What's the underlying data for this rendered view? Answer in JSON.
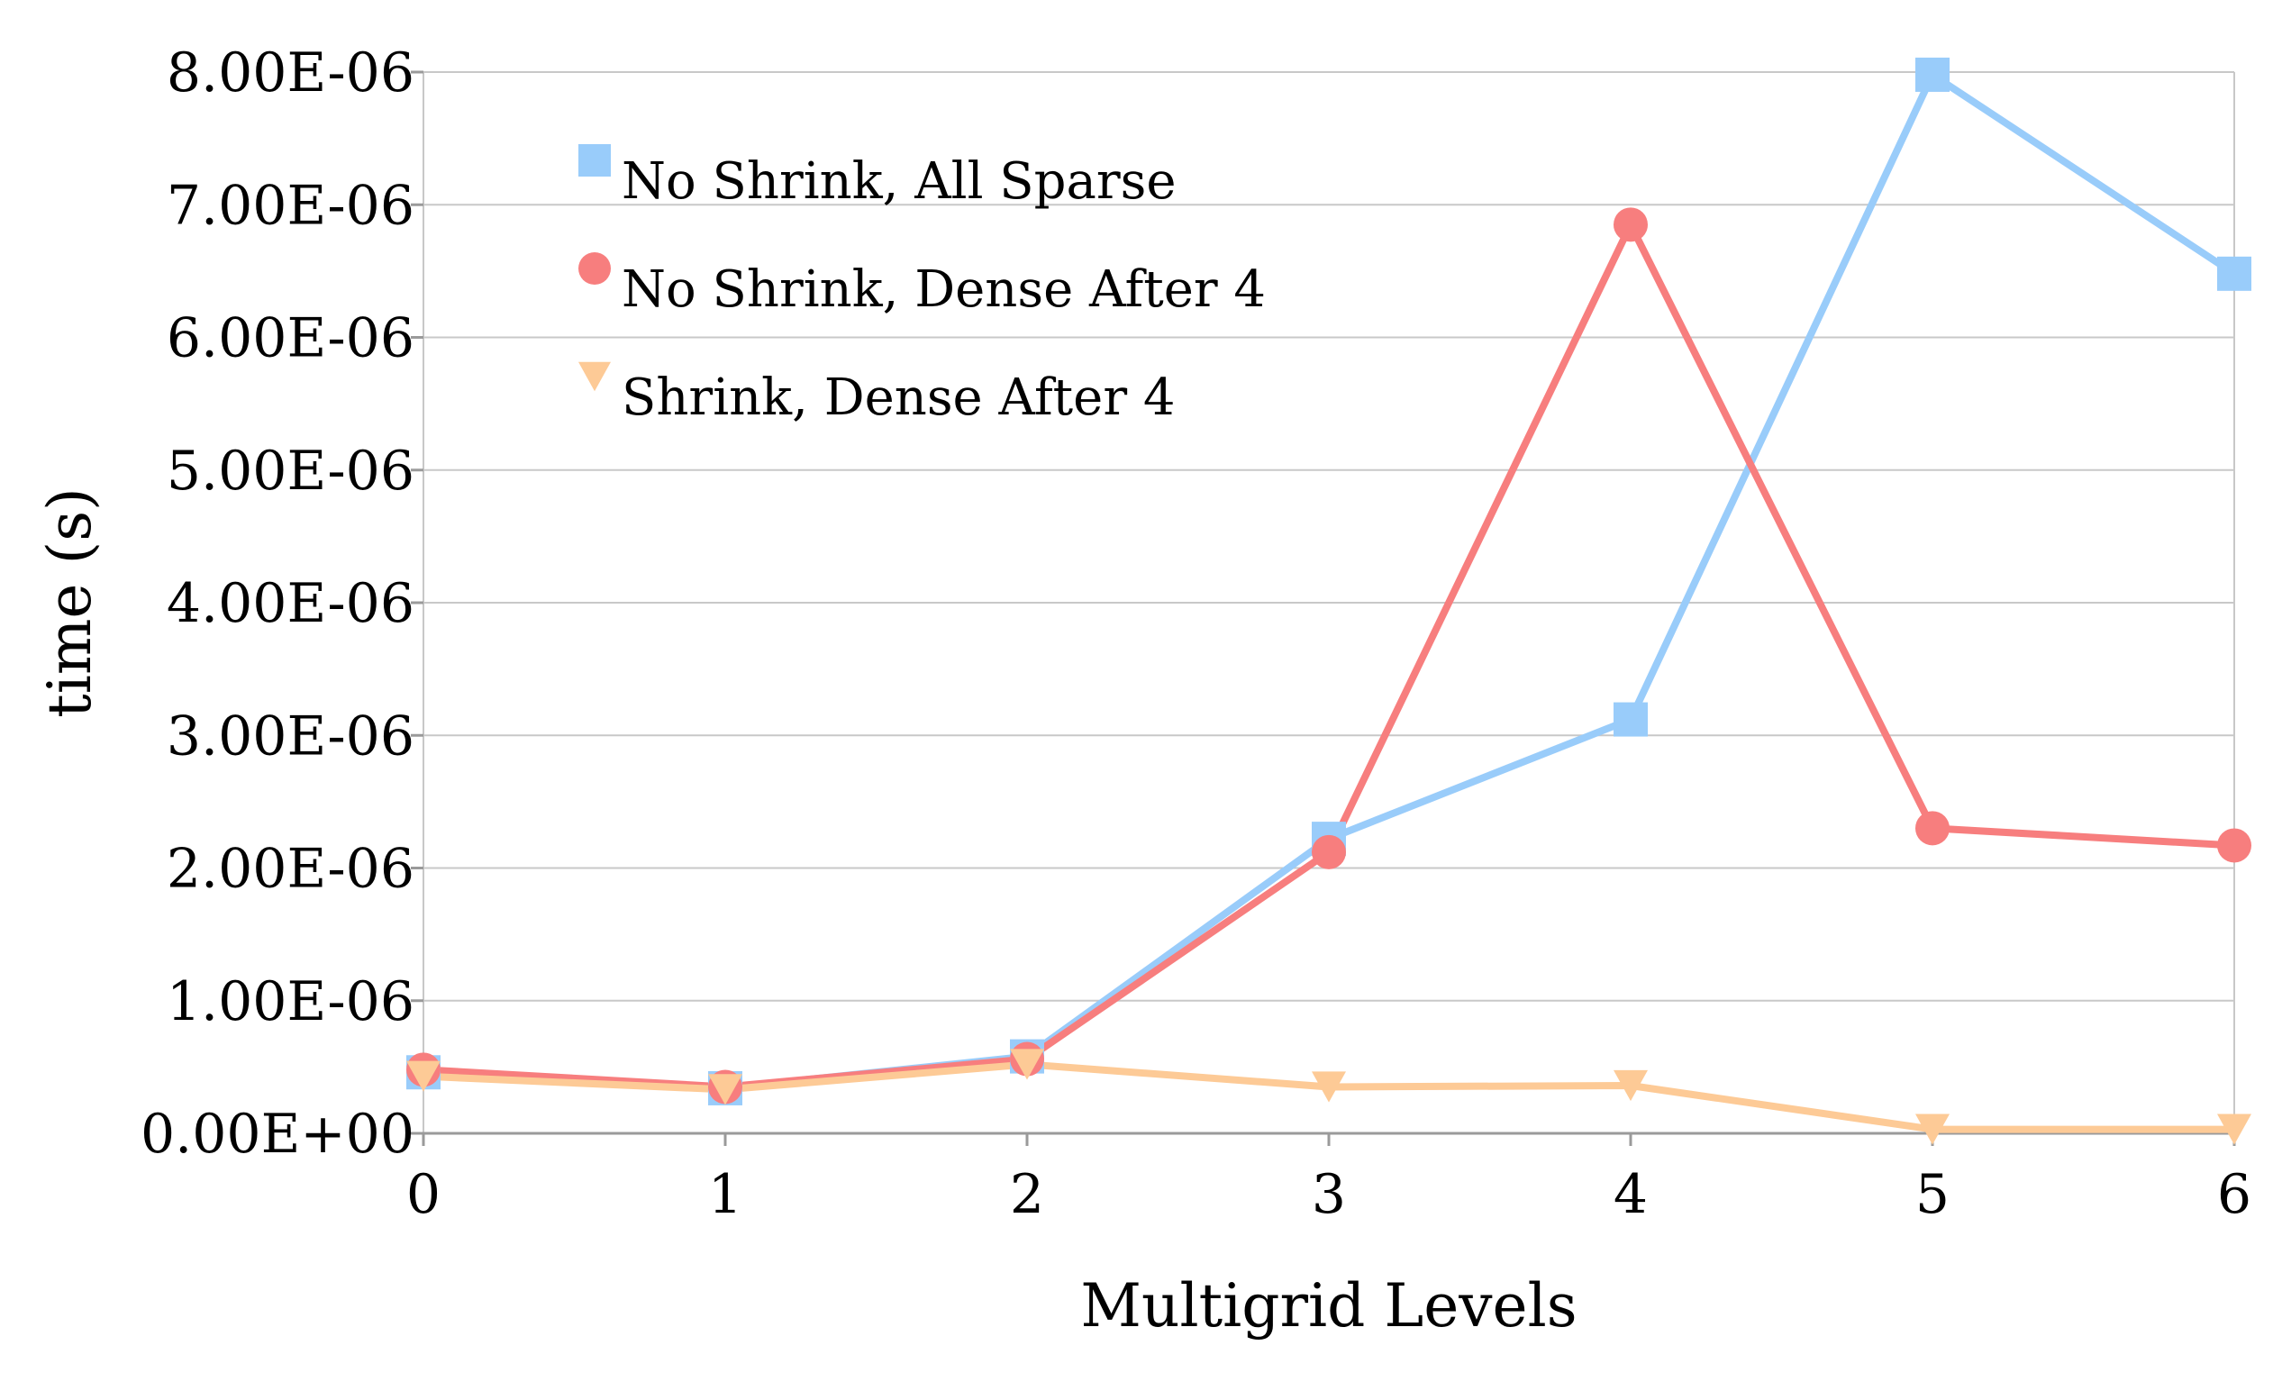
{
  "chart_data": {
    "type": "line",
    "title": "",
    "xlabel": "Multigrid Levels",
    "ylabel": "time (s)",
    "x": [
      0,
      1,
      2,
      3,
      4,
      5,
      6
    ],
    "x_tick_labels": [
      "0",
      "1",
      "2",
      "3",
      "4",
      "5",
      "6"
    ],
    "y_tick_labels": [
      "0.00E+00",
      "1.00E-06",
      "2.00E-06",
      "3.00E-06",
      "4.00E-06",
      "5.00E-06",
      "6.00E-06",
      "7.00E-06",
      "8.00E-06"
    ],
    "y_ticks": [
      0,
      1e-06,
      2e-06,
      3e-06,
      4e-06,
      5e-06,
      6e-06,
      7e-06,
      8e-06
    ],
    "xlim": [
      0,
      6
    ],
    "ylim": [
      0,
      8e-06
    ],
    "grid": "horizontal",
    "legend_position": "top-left",
    "series": [
      {
        "name": "No Shrink, All Sparse",
        "color": "#99ccfa",
        "marker": "square",
        "values": [
          4.6e-07,
          3.4e-07,
          5.8e-07,
          2.22e-06,
          3.12e-06,
          7.98e-06,
          6.48e-06
        ]
      },
      {
        "name": "No Shrink, Dense After 4",
        "color": "#f77e7e",
        "marker": "circle",
        "values": [
          4.8e-07,
          3.5e-07,
          5.6e-07,
          2.12e-06,
          6.85e-06,
          2.3e-06,
          2.17e-06
        ]
      },
      {
        "name": "Shrink, Dense After 4",
        "color": "#fdca96",
        "marker": "triangle-down",
        "values": [
          4.3e-07,
          3.3e-07,
          5.2e-07,
          3.5e-07,
          3.6e-07,
          3e-08,
          3e-08
        ]
      }
    ]
  }
}
